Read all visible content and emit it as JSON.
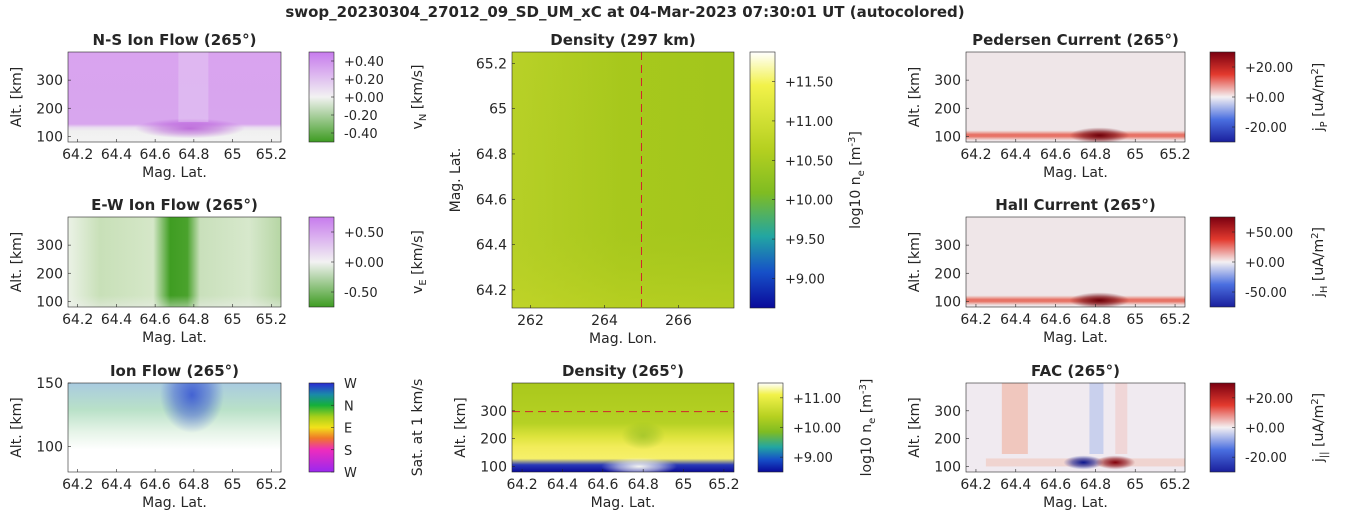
{
  "suptitle": "swop_20230304_27012_09_SD_UM_xC at 04-Mar-2023 07:30:01 UT (autocolored)",
  "colors": {
    "purple": "#c471e6",
    "green": "#2e8b1a",
    "density_mid": "#a8c91c",
    "red": "#a50014",
    "blue": "#1a2bbf"
  },
  "chart_data": [
    {
      "id": "ns_flow",
      "type": "heatmap",
      "title": "N-S Ion Flow (265°)",
      "xlabel": "Mag. Lat.",
      "ylabel": "Alt. [km]",
      "xlim": [
        64.15,
        65.25
      ],
      "ylim": [
        80,
        400
      ],
      "xticks": [
        "64.2",
        "64.4",
        "64.6",
        "64.8",
        "65",
        "65.2"
      ],
      "yticks": [
        "100",
        "200",
        "300"
      ],
      "colorbar": {
        "label": "v_N [km/s]",
        "ticks": [
          "+0.40",
          "+0.20",
          "+0.00",
          "-0.20",
          "-0.40"
        ]
      },
      "colormap": "green-white-purple"
    },
    {
      "id": "density_map",
      "type": "heatmap",
      "title": "Density (297 km)",
      "xlabel": "Mag. Lon.",
      "ylabel": "Mag. Lat.",
      "xlim": [
        261.5,
        267.5
      ],
      "ylim": [
        64.12,
        65.25
      ],
      "xticks": [
        "262",
        "264",
        "266"
      ],
      "yticks": [
        "64.2",
        "64.4",
        "64.6",
        "64.8",
        "65",
        "65.2"
      ],
      "ref_lon": 265,
      "colorbar": {
        "label": "log10 n_e [m^-3]",
        "ticks": [
          "+11.50",
          "+11.00",
          "+10.50",
          "+10.00",
          "+9.50",
          "+9.00"
        ]
      },
      "colormap": "blue-green-yellow-white"
    },
    {
      "id": "pedersen",
      "type": "heatmap",
      "title": "Pedersen Current (265°)",
      "xlabel": "Mag. Lat.",
      "ylabel": "Alt. [km]",
      "xlim": [
        64.15,
        65.25
      ],
      "ylim": [
        80,
        400
      ],
      "xticks": [
        "64.2",
        "64.4",
        "64.6",
        "64.8",
        "65",
        "65.2"
      ],
      "yticks": [
        "100",
        "200",
        "300"
      ],
      "colorbar": {
        "label": "j_P [uA/m^2]",
        "ticks": [
          "+20.00",
          "+0.00",
          "-20.00"
        ]
      },
      "colormap": "blue-white-red"
    },
    {
      "id": "ew_flow",
      "type": "heatmap",
      "title": "E-W Ion Flow (265°)",
      "xlabel": "Mag. Lat.",
      "ylabel": "Alt. [km]",
      "xlim": [
        64.15,
        65.25
      ],
      "ylim": [
        80,
        400
      ],
      "xticks": [
        "64.2",
        "64.4",
        "64.6",
        "64.8",
        "65",
        "65.2"
      ],
      "yticks": [
        "100",
        "200",
        "300"
      ],
      "colorbar": {
        "label": "v_E [km/s]",
        "ticks": [
          "+0.50",
          "+0.00",
          "-0.50"
        ]
      },
      "colormap": "green-white-purple"
    },
    {
      "id": "hall",
      "type": "heatmap",
      "title": "Hall Current (265°)",
      "xlabel": "Mag. Lat.",
      "ylabel": "Alt. [km]",
      "xlim": [
        64.15,
        65.25
      ],
      "ylim": [
        80,
        400
      ],
      "xticks": [
        "64.2",
        "64.4",
        "64.6",
        "64.8",
        "65",
        "65.2"
      ],
      "yticks": [
        "100",
        "200",
        "300"
      ],
      "colorbar": {
        "label": "j_H [uA/m^2]",
        "ticks": [
          "+50.00",
          "+0.00",
          "-50.00"
        ]
      },
      "colormap": "blue-white-red"
    },
    {
      "id": "ion_flow",
      "type": "heatmap",
      "title": "Ion Flow (265°)",
      "xlabel": "Mag. Lat.",
      "ylabel": "Alt. [km]",
      "xlim": [
        64.15,
        65.25
      ],
      "ylim": [
        80,
        150
      ],
      "xticks": [
        "64.2",
        "64.4",
        "64.6",
        "64.8",
        "65",
        "65.2"
      ],
      "yticks": [
        "100",
        "150"
      ],
      "colorbar": {
        "label": "Sat. at 1 km/s",
        "ticks": [
          "W",
          "N",
          "E",
          "S",
          "W"
        ]
      },
      "colormap": "direction-wheel"
    },
    {
      "id": "density_alt",
      "type": "heatmap",
      "title": "Density (265°)",
      "xlabel": "Mag. Lat.",
      "ylabel": "Alt. [km]",
      "xlim": [
        64.15,
        65.25
      ],
      "ylim": [
        80,
        400
      ],
      "xticks": [
        "64.2",
        "64.4",
        "64.6",
        "64.8",
        "65",
        "65.2"
      ],
      "yticks": [
        "100",
        "200",
        "300"
      ],
      "ref_alt": 297,
      "colorbar": {
        "label": "log10 n_e [m^-3]",
        "ticks": [
          "+11.00",
          "+10.00",
          "+9.00"
        ]
      },
      "colormap": "blue-green-yellow-white"
    },
    {
      "id": "fac",
      "type": "heatmap",
      "title": "FAC (265°)",
      "xlabel": "Mag. Lat.",
      "ylabel": "Alt. [km]",
      "xlim": [
        64.15,
        65.25
      ],
      "ylim": [
        80,
        400
      ],
      "xticks": [
        "64.2",
        "64.4",
        "64.6",
        "64.8",
        "65",
        "65.2"
      ],
      "yticks": [
        "100",
        "200",
        "300"
      ],
      "colorbar": {
        "label": "j_|| [uA/m^2]",
        "ticks": [
          "+20.00",
          "+0.00",
          "-20.00"
        ]
      },
      "colormap": "blue-white-red"
    }
  ]
}
